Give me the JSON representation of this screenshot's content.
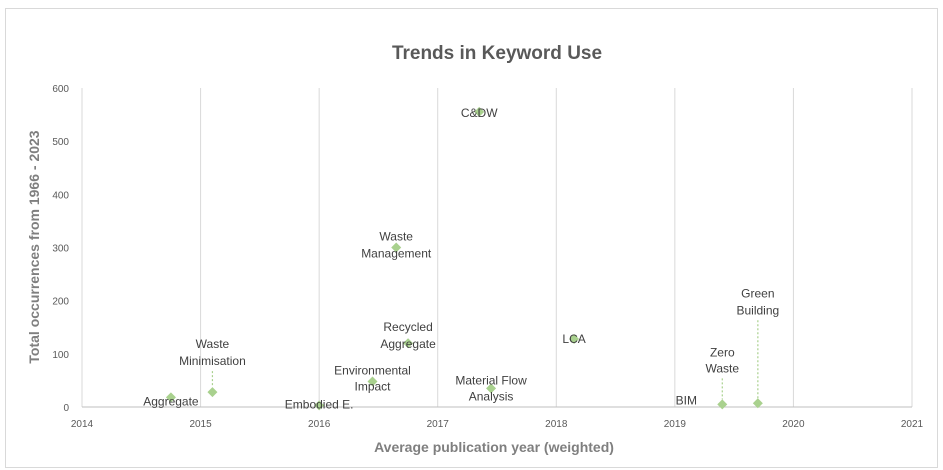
{
  "chart_data": {
    "type": "scatter",
    "title": "Trends in Keyword Use",
    "xlabel": "Average publication year (weighted)",
    "ylabel": "Total occurrences from 1966 - 2023",
    "xlim": [
      2014,
      2021
    ],
    "ylim": [
      0,
      600
    ],
    "xticks": [
      2014,
      2015,
      2016,
      2017,
      2018,
      2019,
      2020,
      2021
    ],
    "yticks": [
      0,
      100,
      200,
      300,
      400,
      500,
      600
    ],
    "grid": "vertical",
    "marker_color": "#a9d18e",
    "points": [
      {
        "x": 2017.35,
        "y": 555,
        "label": "C&DW"
      },
      {
        "x": 2016.65,
        "y": 300,
        "label": "Waste Management"
      },
      {
        "x": 2016.75,
        "y": 120,
        "label": "Recycled Aggregate"
      },
      {
        "x": 2018.15,
        "y": 128,
        "label": "LCA"
      },
      {
        "x": 2016.45,
        "y": 48,
        "label": "Environmental Impact"
      },
      {
        "x": 2017.45,
        "y": 35,
        "label": "Material Flow Analysis"
      },
      {
        "x": 2015.1,
        "y": 28,
        "label": "Waste Minimisation"
      },
      {
        "x": 2014.75,
        "y": 18,
        "label": "Aggregate"
      },
      {
        "x": 2016.0,
        "y": 3,
        "label": "Embodied E."
      },
      {
        "x": 2019.4,
        "y": 5,
        "label": "BIM"
      },
      {
        "x": 2019.4,
        "y": 5,
        "label": "Zero Waste"
      },
      {
        "x": 2019.7,
        "y": 7,
        "label": "Green Building"
      }
    ]
  }
}
